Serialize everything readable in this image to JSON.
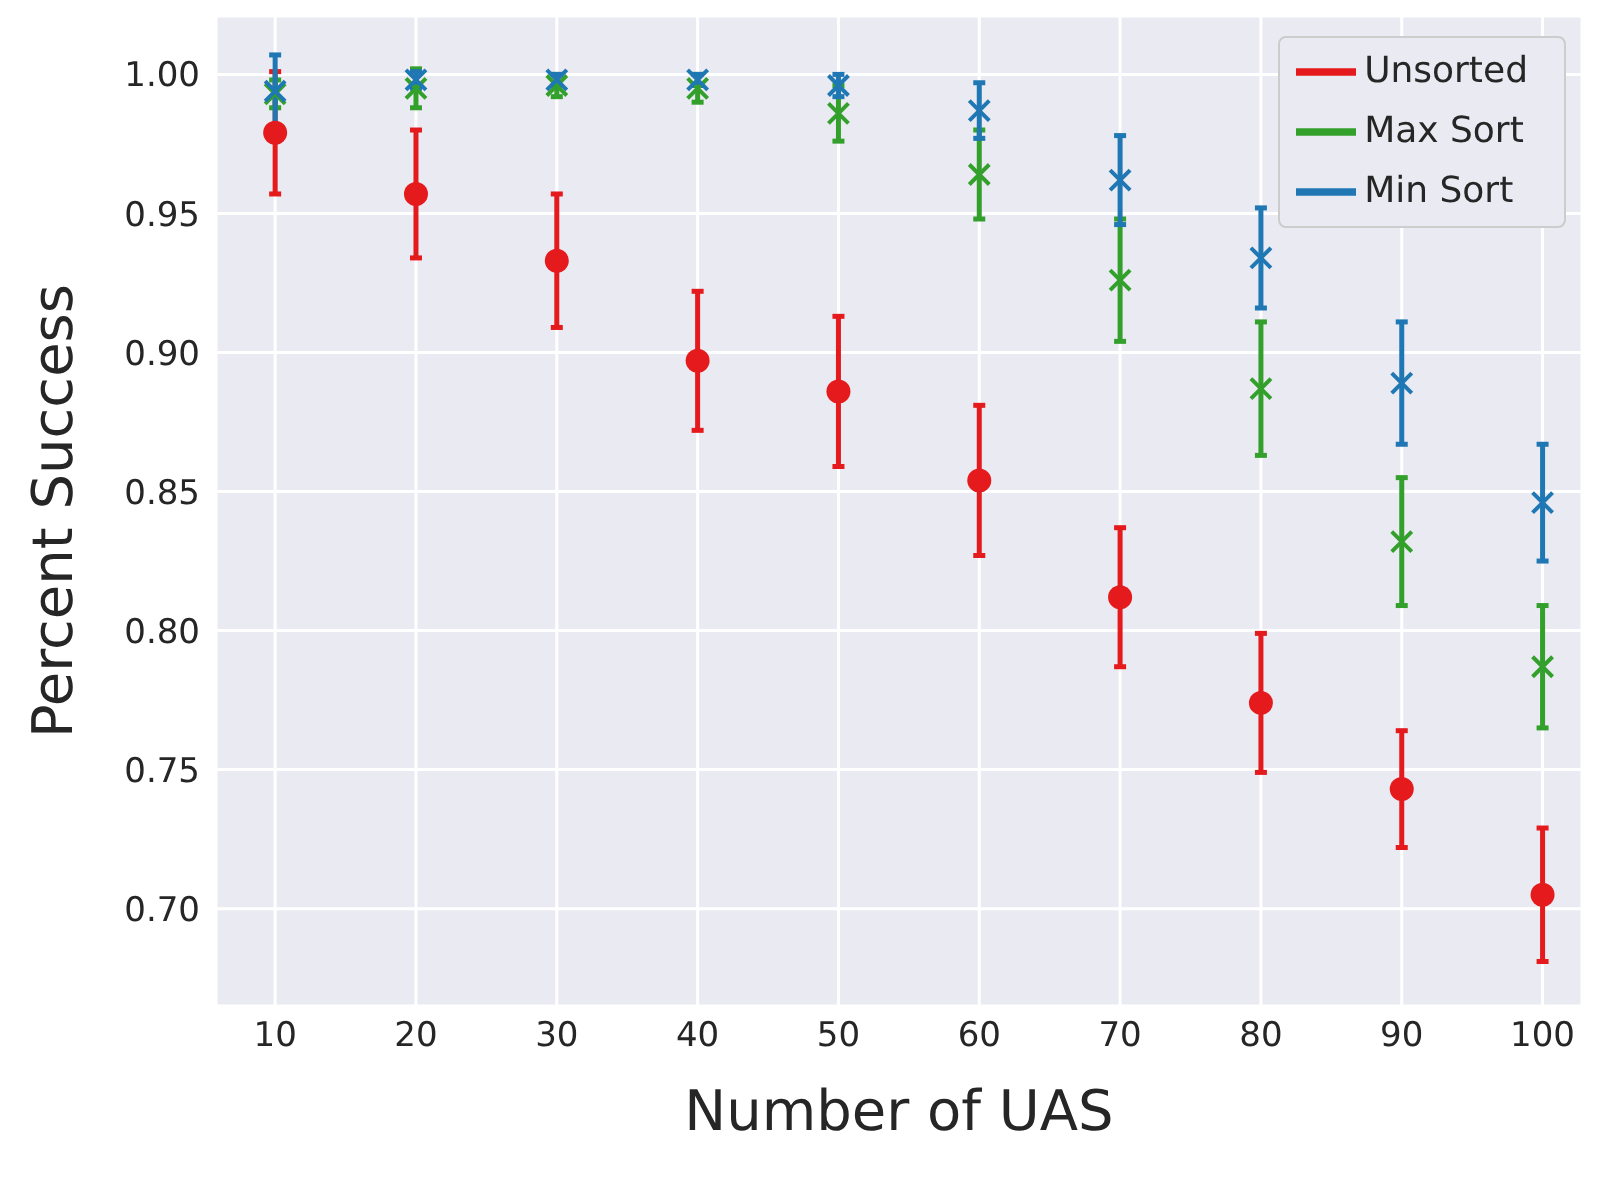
{
  "chart_data": {
    "type": "scatter",
    "xlabel": "Number of UAS",
    "ylabel": "Percent Success",
    "x": [
      10,
      20,
      30,
      40,
      50,
      60,
      70,
      80,
      90,
      100
    ],
    "xlim": [
      5.8,
      102.8
    ],
    "xticks": [
      10,
      20,
      30,
      40,
      50,
      60,
      70,
      80,
      90,
      100
    ],
    "ylim": [
      0.665,
      1.021
    ],
    "yticks": [
      {
        "value": 0.7,
        "label": "0.70"
      },
      {
        "value": 0.75,
        "label": "0.75"
      },
      {
        "value": 0.8,
        "label": "0.80"
      },
      {
        "value": 0.85,
        "label": "0.85"
      },
      {
        "value": 0.9,
        "label": "0.90"
      },
      {
        "value": 0.95,
        "label": "0.95"
      },
      {
        "value": 1.0,
        "label": "1.00"
      }
    ],
    "grid": true,
    "legend": "top right",
    "series": [
      {
        "name": "Unsorted",
        "color": "#e41a1c",
        "marker": "circle",
        "values": [
          0.979,
          0.957,
          0.933,
          0.897,
          0.886,
          0.854,
          0.812,
          0.774,
          0.743,
          0.705
        ],
        "errors": [
          0.022,
          0.023,
          0.024,
          0.025,
          0.027,
          0.027,
          0.025,
          0.025,
          0.021,
          0.024
        ]
      },
      {
        "name": "Max Sort",
        "color": "#33a02c",
        "marker": "cross",
        "values": [
          0.993,
          0.995,
          0.996,
          0.995,
          0.986,
          0.964,
          0.926,
          0.887,
          0.832,
          0.787
        ],
        "errors": [
          0.005,
          0.007,
          0.004,
          0.005,
          0.01,
          0.016,
          0.022,
          0.024,
          0.023,
          0.022
        ]
      },
      {
        "name": "Min Sort",
        "color": "#1f77b4",
        "marker": "cross",
        "values": [
          0.994,
          0.998,
          0.998,
          0.998,
          0.996,
          0.987,
          0.962,
          0.934,
          0.889,
          0.846
        ],
        "errors": [
          0.013,
          0.003,
          0.002,
          0.002,
          0.004,
          0.01,
          0.016,
          0.018,
          0.022,
          0.021
        ]
      }
    ]
  }
}
